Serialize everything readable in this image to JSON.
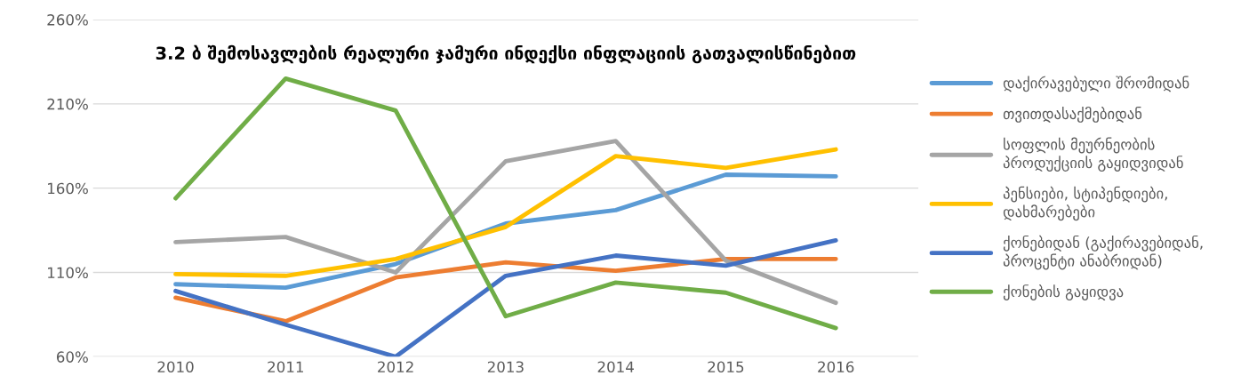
{
  "chart_data": {
    "type": "line",
    "title": "3.2 ბ შემოსავლების რეალური ჯამური ინდექსი ინფლაციის გათვალისწინებით",
    "categories": [
      "2010",
      "2011",
      "2012",
      "2013",
      "2014",
      "2015",
      "2016"
    ],
    "series": [
      {
        "name": "დაქირავებული შრომიდან",
        "color": "#5b9bd5",
        "values": [
          103,
          101,
          115,
          139,
          147,
          168,
          167
        ]
      },
      {
        "name": "თვითდასაქმებიდან",
        "color": "#ed7d31",
        "values": [
          95,
          81,
          107,
          116,
          111,
          118,
          118
        ]
      },
      {
        "name": "სოფლის მეურნეობის პროდუქციის გაყიდვიდან",
        "color": "#a5a5a5",
        "values": [
          128,
          131,
          110,
          176,
          188,
          117,
          92
        ]
      },
      {
        "name": "პენსიები, სტიპენდიები, დახმარებები",
        "color": "#ffc000",
        "values": [
          109,
          108,
          118,
          137,
          179,
          172,
          183
        ]
      },
      {
        "name": "ქონებიდან (გაქირავებიდან, პროცენტი ანაბრიდან)",
        "color": "#4472c4",
        "values": [
          99,
          79,
          60,
          108,
          120,
          114,
          129
        ]
      },
      {
        "name": "ქონების გაყიდვა",
        "color": "#70ad47",
        "values": [
          154,
          225,
          206,
          84,
          104,
          98,
          77
        ]
      }
    ],
    "ylim": [
      60,
      260
    ],
    "yticks": [
      {
        "value": 60,
        "label": "60%"
      },
      {
        "value": 110,
        "label": "110%"
      },
      {
        "value": 160,
        "label": "160%"
      },
      {
        "value": 210,
        "label": "210%"
      },
      {
        "value": 260,
        "label": "260%"
      }
    ],
    "grid": "y",
    "legend": "right",
    "marker": "none",
    "line_style": "solid"
  }
}
